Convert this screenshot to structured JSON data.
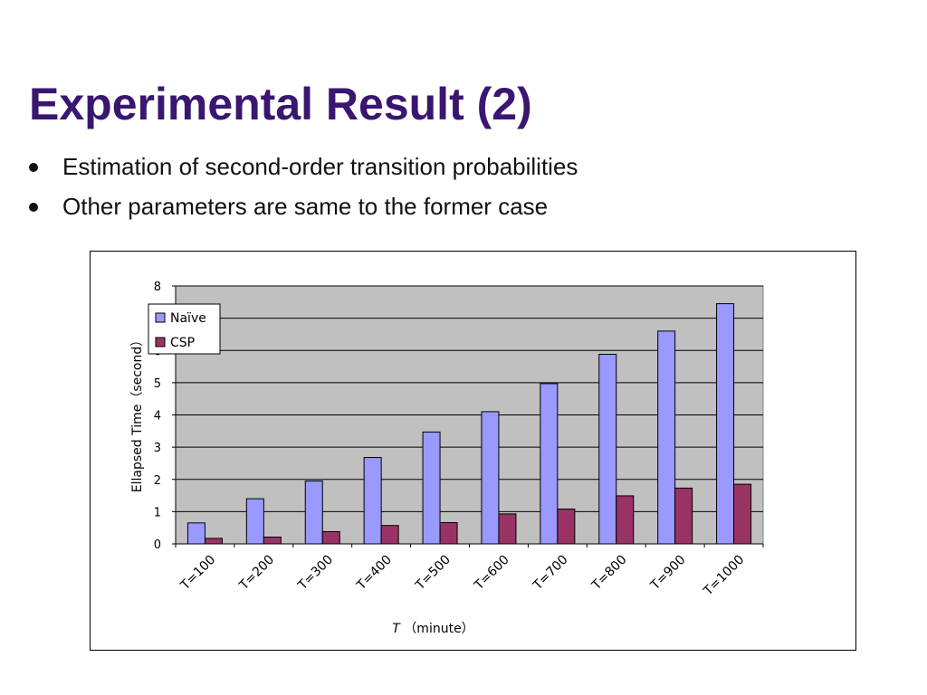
{
  "slide": {
    "title": "Experimental Result (2)",
    "bullets": [
      "Estimation of second-order transition probabilities",
      "Other parameters are same to the former case"
    ]
  },
  "colors": {
    "title": "#3a1670",
    "plot_background": "#c0c0c0",
    "naive": "#9999ff",
    "csp": "#993366"
  },
  "chart_data": {
    "type": "bar",
    "categories": [
      "T=100",
      "T=200",
      "T=300",
      "T=400",
      "T=500",
      "T=600",
      "T=700",
      "T=800",
      "T=900",
      "T=1000"
    ],
    "series": [
      {
        "name": "Naïve",
        "values": [
          0.65,
          1.4,
          1.95,
          2.68,
          3.47,
          4.1,
          4.97,
          5.88,
          6.6,
          7.45
        ]
      },
      {
        "name": "CSP",
        "values": [
          0.17,
          0.21,
          0.38,
          0.57,
          0.66,
          0.93,
          1.08,
          1.49,
          1.73,
          1.85
        ]
      }
    ],
    "xlabel_italic": "T",
    "xlabel": "（minute）",
    "ylabel": "Ellapsed Time（second）",
    "ylim": [
      0,
      8
    ],
    "yticks": [
      "0",
      "1",
      "2",
      "3",
      "4",
      "5",
      "6",
      "7",
      "8"
    ],
    "grid": true,
    "legend": "top-left, inside plot"
  }
}
